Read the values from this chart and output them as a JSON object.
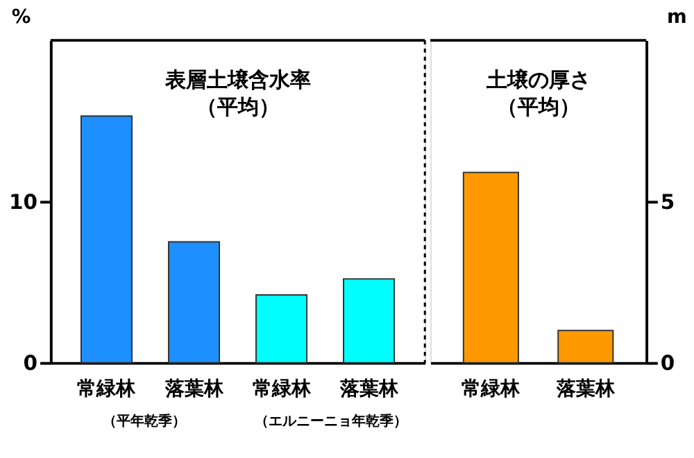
{
  "chart_data": [
    {
      "type": "bar",
      "categories": [
        "常緑林",
        "落葉林",
        "常緑林",
        "落葉林"
      ],
      "values": [
        15.3,
        7.5,
        4.2,
        5.2
      ],
      "colors": [
        "#1e8fff",
        "#1e8fff",
        "#00ffff",
        "#00ffff"
      ],
      "ylabel": "%",
      "ylim": [
        0,
        20
      ],
      "yticks": [
        0,
        10
      ],
      "grid": false,
      "annotations": [
        "表層土壌含水率",
        "（平均）",
        "（平年乾季）",
        "（エルニーニョ年乾季）"
      ]
    },
    {
      "type": "bar",
      "categories": [
        "常緑林",
        "落葉林"
      ],
      "values": [
        5.9,
        1.0
      ],
      "colors": [
        "#ff9900",
        "#ff9900"
      ],
      "ylabel": "m",
      "ylim": [
        0,
        10
      ],
      "yticks": [
        0,
        5
      ],
      "grid": false,
      "annotations": [
        "土壌の厚さ",
        "（平均）"
      ]
    }
  ]
}
